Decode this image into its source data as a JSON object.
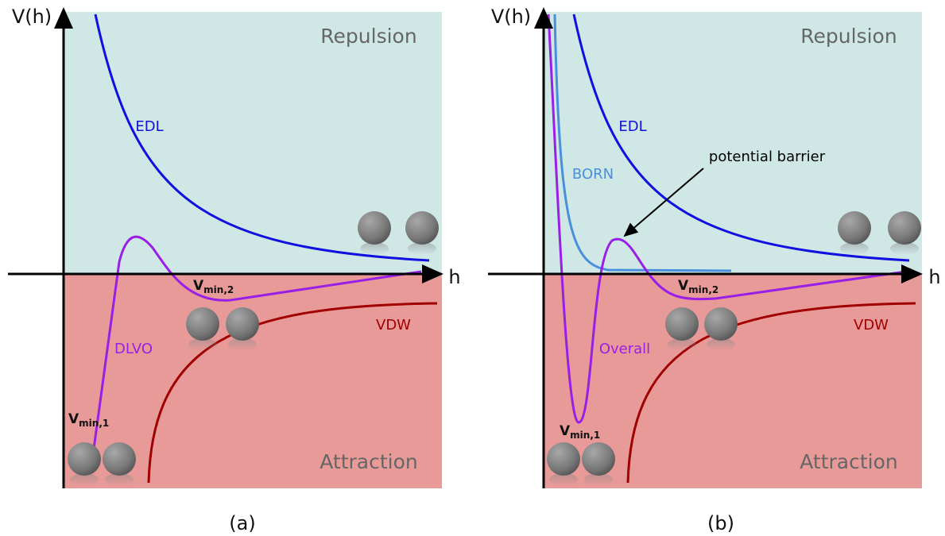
{
  "panels": [
    {
      "caption": "(a)",
      "y_axis": "V(h)",
      "x_axis": "h",
      "regions": [
        "Repulsion",
        "Attraction"
      ],
      "curves": [
        "EDL",
        "DLVO",
        "VDW"
      ],
      "minima": [
        {
          "main": "V",
          "sub": "min,1"
        },
        {
          "main": "V",
          "sub": "min,2"
        }
      ]
    },
    {
      "caption": "(b)",
      "y_axis": "V(h)",
      "x_axis": "h",
      "regions": [
        "Repulsion",
        "Attraction"
      ],
      "curves": [
        "EDL",
        "BORN",
        "Overall",
        "VDW"
      ],
      "minima": [
        {
          "main": "V",
          "sub": "min,1"
        },
        {
          "main": "V",
          "sub": "min,2"
        }
      ],
      "annotation": "potential barrier"
    }
  ]
}
